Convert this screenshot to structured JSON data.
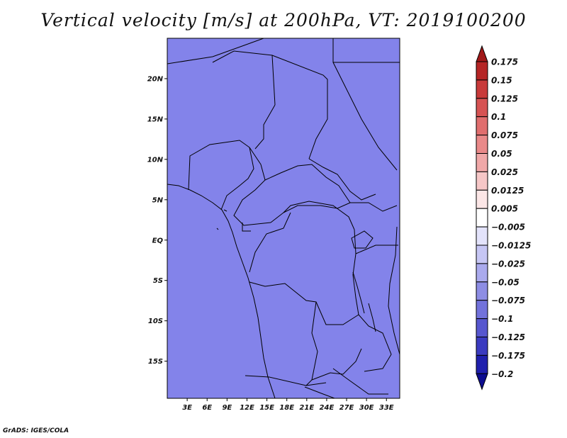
{
  "title": "Vertical velocity [m/s] at 200hPa, VT: 2019100200",
  "credit": "GrADS: IGES/COLA",
  "lat_labels": [
    "20N",
    "15N",
    "10N",
    "5N",
    "EQ",
    "5S",
    "10S",
    "15S"
  ],
  "lat_values": [
    20,
    15,
    10,
    5,
    0,
    -5,
    -10,
    -15
  ],
  "lon_labels": [
    "3E",
    "6E",
    "9E",
    "12E",
    "15E",
    "18E",
    "21E",
    "24E",
    "27E",
    "30E",
    "33E"
  ],
  "lon_values": [
    3,
    6,
    9,
    12,
    15,
    18,
    21,
    24,
    27,
    30,
    33
  ],
  "map_extent": {
    "lon_min": 0,
    "lon_max": 35,
    "lat_min": -19.6,
    "lat_max": 25
  },
  "colorbar": {
    "labels": [
      "0.175",
      "0.15",
      "0.125",
      "0.1",
      "0.075",
      "0.05",
      "0.025",
      "0.0125",
      "0.005",
      "−0.005",
      "−0.0125",
      "−0.025",
      "−0.05",
      "−0.075",
      "−0.1",
      "−0.125",
      "−0.175",
      "−0.2"
    ],
    "colors": [
      "#a01818",
      "#b52525",
      "#c83a3a",
      "#d65353",
      "#e06e6e",
      "#e98989",
      "#f0a8a8",
      "#f6c7c7",
      "#fbe6e6",
      "#ffffff",
      "#e3e3fb",
      "#c6c6f4",
      "#aaaaed",
      "#8d8de4",
      "#7272db",
      "#5757cf",
      "#3b3bc0",
      "#2020ad",
      "#0d0d90"
    ]
  }
}
